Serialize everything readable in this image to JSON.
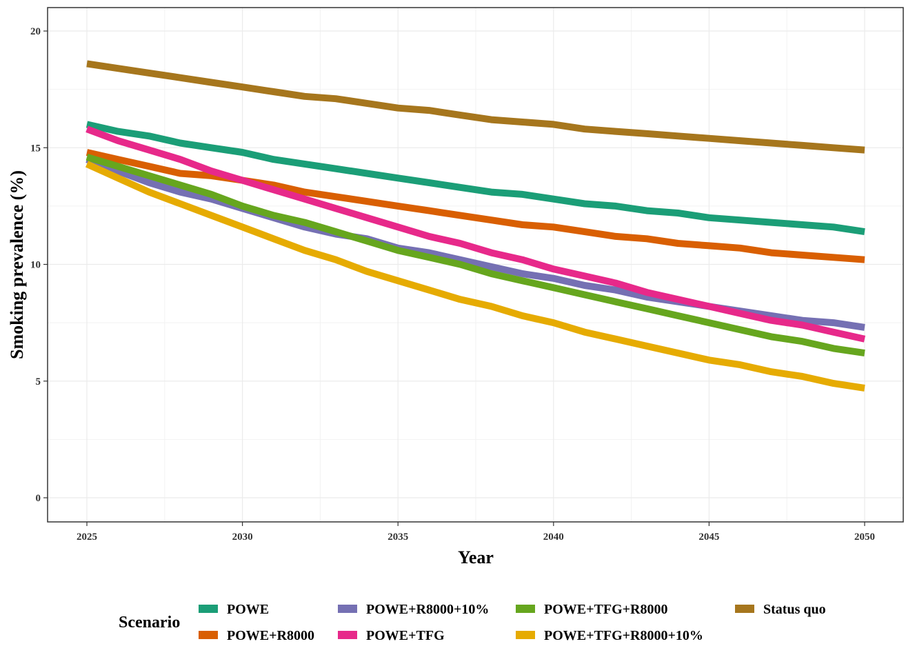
{
  "chart_data": {
    "type": "line",
    "xlabel": "Year",
    "ylabel": "Smoking prevalence (%)",
    "xlim": [
      2025,
      2050
    ],
    "ylim": [
      0,
      20
    ],
    "x_ticks": [
      "2025",
      "2030",
      "2035",
      "2040",
      "2045",
      "2050"
    ],
    "y_ticks": [
      "0",
      "5",
      "10",
      "15",
      "20"
    ],
    "grid": true,
    "legend_position": "bottom",
    "legend_title": "Scenario",
    "x": [
      2025,
      2026,
      2027,
      2028,
      2029,
      2030,
      2031,
      2032,
      2033,
      2034,
      2035,
      2036,
      2037,
      2038,
      2039,
      2040,
      2041,
      2042,
      2043,
      2044,
      2045,
      2046,
      2047,
      2048,
      2049,
      2050
    ],
    "series": [
      {
        "name": "POWE",
        "color": "#1b9e77",
        "values": [
          16.0,
          15.7,
          15.5,
          15.2,
          15.0,
          14.8,
          14.5,
          14.3,
          14.1,
          13.9,
          13.7,
          13.5,
          13.3,
          13.1,
          13.0,
          12.8,
          12.6,
          12.5,
          12.3,
          12.2,
          12.0,
          11.9,
          11.8,
          11.7,
          11.6,
          11.4
        ]
      },
      {
        "name": "POWE+R8000",
        "color": "#d95f02",
        "values": [
          14.8,
          14.5,
          14.2,
          13.9,
          13.8,
          13.6,
          13.4,
          13.1,
          12.9,
          12.7,
          12.5,
          12.3,
          12.1,
          11.9,
          11.7,
          11.6,
          11.4,
          11.2,
          11.1,
          10.9,
          10.8,
          10.7,
          10.5,
          10.4,
          10.3,
          10.2
        ]
      },
      {
        "name": "POWE+R8000+10%",
        "color": "#7570b3",
        "values": [
          14.5,
          14.0,
          13.5,
          13.1,
          12.8,
          12.4,
          12.0,
          11.6,
          11.3,
          11.1,
          10.7,
          10.5,
          10.2,
          9.9,
          9.6,
          9.4,
          9.1,
          8.9,
          8.6,
          8.4,
          8.2,
          8.0,
          7.8,
          7.6,
          7.5,
          7.3
        ]
      },
      {
        "name": "POWE+TFG",
        "color": "#e7298a",
        "values": [
          15.8,
          15.3,
          14.9,
          14.5,
          14.0,
          13.6,
          13.2,
          12.8,
          12.4,
          12.0,
          11.6,
          11.2,
          10.9,
          10.5,
          10.2,
          9.8,
          9.5,
          9.2,
          8.8,
          8.5,
          8.2,
          7.9,
          7.6,
          7.4,
          7.1,
          6.8
        ]
      },
      {
        "name": "POWE+TFG+R8000",
        "color": "#66a61e",
        "values": [
          14.6,
          14.2,
          13.8,
          13.4,
          13.0,
          12.5,
          12.1,
          11.8,
          11.4,
          11.0,
          10.6,
          10.3,
          10.0,
          9.6,
          9.3,
          9.0,
          8.7,
          8.4,
          8.1,
          7.8,
          7.5,
          7.2,
          6.9,
          6.7,
          6.4,
          6.2
        ]
      },
      {
        "name": "POWE+TFG+R8000+10%",
        "color": "#e6ab02",
        "values": [
          14.3,
          13.7,
          13.1,
          12.6,
          12.1,
          11.6,
          11.1,
          10.6,
          10.2,
          9.7,
          9.3,
          8.9,
          8.5,
          8.2,
          7.8,
          7.5,
          7.1,
          6.8,
          6.5,
          6.2,
          5.9,
          5.7,
          5.4,
          5.2,
          4.9,
          4.7
        ]
      },
      {
        "name": "Status quo",
        "color": "#a6761d",
        "values": [
          18.6,
          18.4,
          18.2,
          18.0,
          17.8,
          17.6,
          17.4,
          17.2,
          17.1,
          16.9,
          16.7,
          16.6,
          16.4,
          16.2,
          16.1,
          16.0,
          15.8,
          15.7,
          15.6,
          15.5,
          15.4,
          15.3,
          15.2,
          15.1,
          15.0,
          14.9
        ]
      }
    ]
  }
}
